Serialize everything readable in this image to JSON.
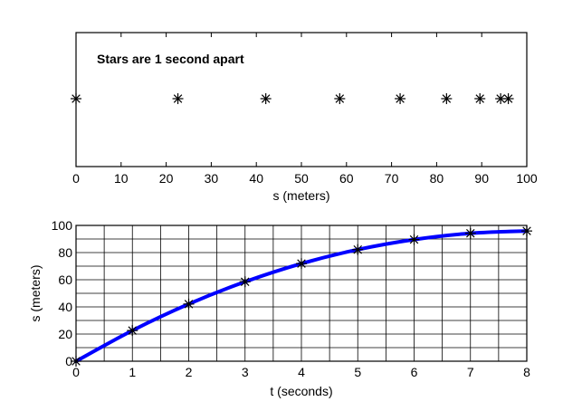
{
  "chart_data": [
    {
      "type": "scatter",
      "title": "",
      "annotation": "Stars are 1 second apart",
      "xlabel": "s (meters)",
      "ylabel": "",
      "xlim": [
        0,
        100
      ],
      "grid": false,
      "x_ticks": [
        "0",
        "10",
        "20",
        "30",
        "40",
        "50",
        "60",
        "70",
        "80",
        "90",
        "100"
      ],
      "marker": "asterisk",
      "series": [
        {
          "x": [
            0,
            22.6,
            42.1,
            58.5,
            71.9,
            82.2,
            89.6,
            94.2,
            95.9
          ],
          "y": [
            0,
            0,
            0,
            0,
            0,
            0,
            0,
            0,
            0
          ]
        }
      ]
    },
    {
      "type": "line",
      "title": "",
      "xlabel": "t (seconds)",
      "ylabel": "s (meters)",
      "xlim": [
        0,
        8
      ],
      "ylim": [
        0,
        100
      ],
      "grid": true,
      "x_ticks": [
        "0",
        "1",
        "2",
        "3",
        "4",
        "5",
        "6",
        "7",
        "8"
      ],
      "y_ticks": [
        "0",
        "20",
        "40",
        "60",
        "80",
        "100"
      ],
      "line_color": "#0000ff",
      "marker_color": "#000000",
      "marker": "asterisk",
      "series": [
        {
          "x": [
            0,
            1,
            2,
            3,
            4,
            5,
            6,
            7,
            8
          ],
          "y": [
            0,
            22.6,
            42.1,
            58.5,
            71.9,
            82.2,
            89.6,
            94.2,
            95.9
          ]
        }
      ]
    }
  ]
}
